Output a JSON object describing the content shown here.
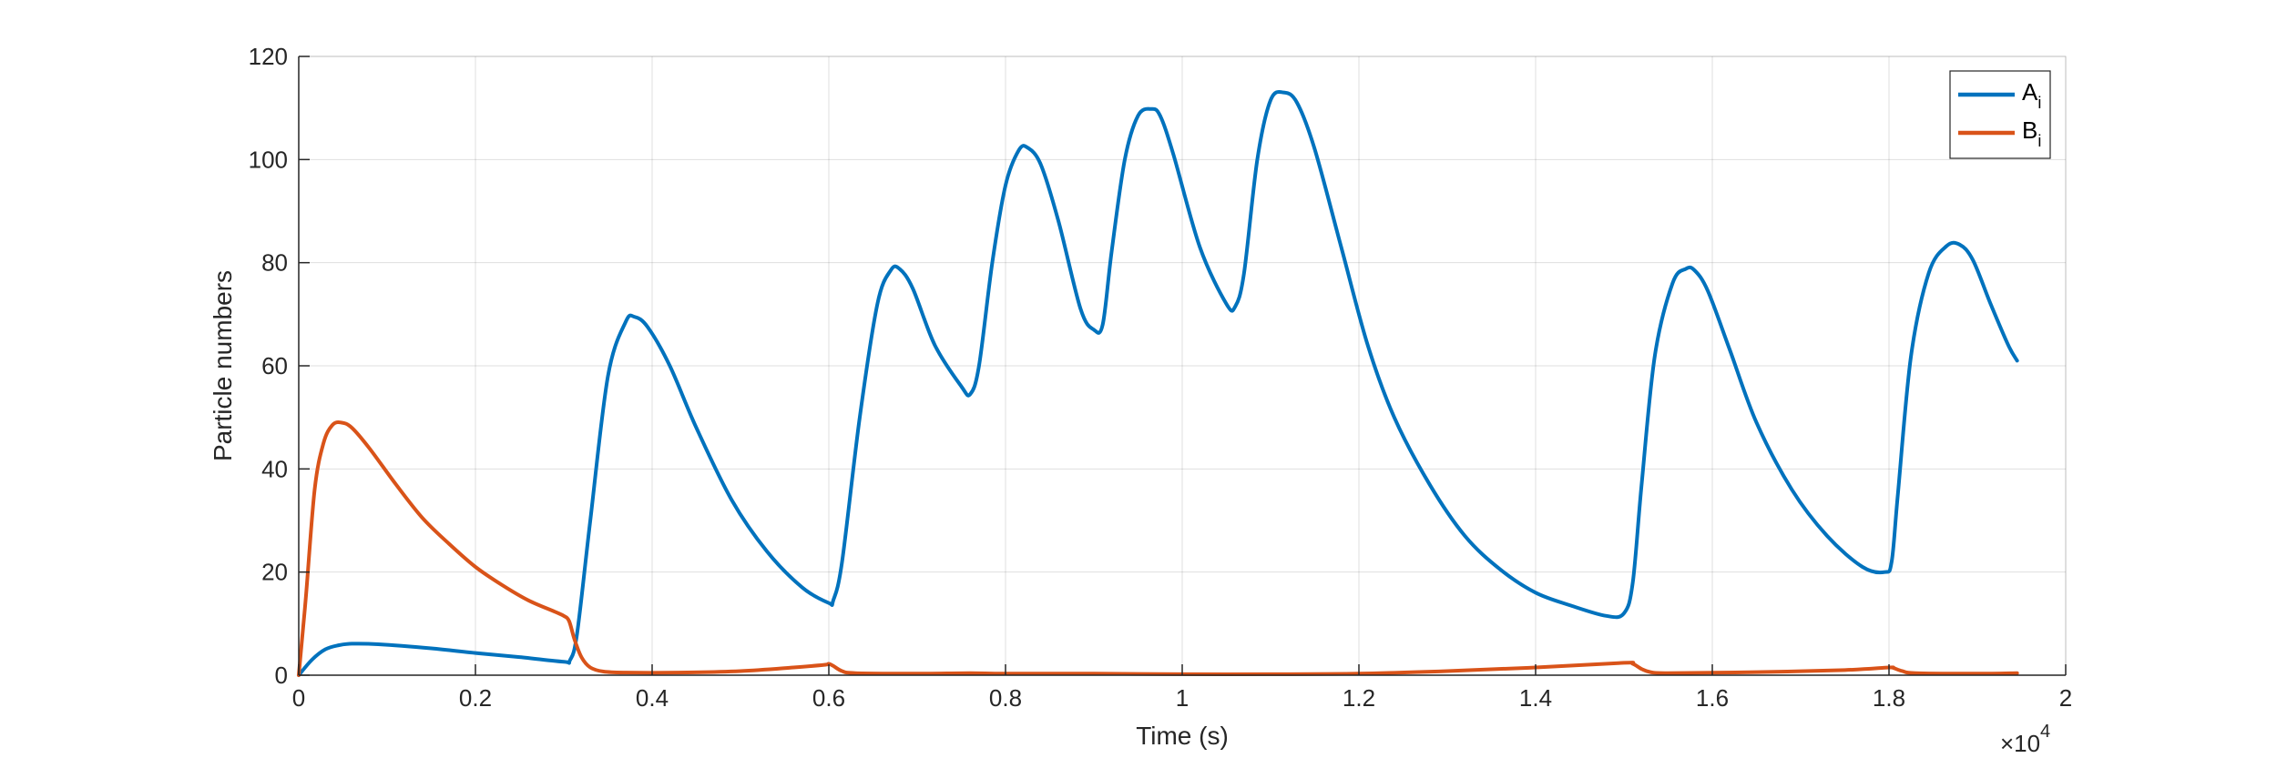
{
  "chart_data": {
    "type": "line",
    "xlabel": "Time (s)",
    "ylabel": "Particle numbers",
    "x_multiplier_label": "×10",
    "x_multiplier_exponent": "4",
    "xlim": [
      0,
      20000
    ],
    "ylim": [
      0,
      120
    ],
    "xticks": [
      0,
      2000,
      4000,
      6000,
      8000,
      10000,
      12000,
      14000,
      16000,
      18000,
      20000
    ],
    "xtick_labels": [
      "0",
      "0.2",
      "0.4",
      "0.6",
      "0.8",
      "1",
      "1.2",
      "1.4",
      "1.6",
      "1.8",
      "2"
    ],
    "yticks": [
      0,
      20,
      40,
      60,
      80,
      100,
      120
    ],
    "grid": true,
    "legend_position": "top-right",
    "series": [
      {
        "name": "A",
        "name_subscript": "i",
        "color": "#0072BD",
        "x": [
          0,
          150,
          300,
          450,
          600,
          900,
          1500,
          2000,
          2500,
          3000,
          3070,
          3150,
          3300,
          3500,
          3700,
          3800,
          3950,
          4200,
          4500,
          4900,
          5300,
          5700,
          6000,
          6050,
          6150,
          6350,
          6550,
          6700,
          6800,
          6950,
          7200,
          7500,
          7600,
          7700,
          7850,
          8000,
          8150,
          8250,
          8400,
          8600,
          8850,
          9000,
          9100,
          9200,
          9350,
          9500,
          9650,
          9750,
          9900,
          10200,
          10500,
          10600,
          10700,
          10850,
          11000,
          11150,
          11300,
          11500,
          11800,
          12100,
          12400,
          12800,
          13200,
          13600,
          14000,
          14400,
          14800,
          15000,
          15100,
          15200,
          15350,
          15550,
          15700,
          15800,
          15950,
          16200,
          16500,
          16900,
          17300,
          17700,
          17950,
          18030,
          18100,
          18250,
          18450,
          18650,
          18800,
          18950,
          19150,
          19350,
          19450
        ],
        "y": [
          0,
          3,
          5,
          5.8,
          6.1,
          6,
          5.2,
          4.3,
          3.5,
          2.6,
          2.9,
          8,
          30,
          58,
          68.5,
          69.5,
          67.5,
          60,
          48,
          34,
          24,
          17,
          14,
          14.5,
          22,
          50,
          72,
          78.5,
          78.8,
          75,
          64,
          56,
          54.5,
          60,
          80,
          95,
          101.8,
          102.3,
          99,
          88,
          71,
          67,
          68,
          82,
          100,
          108.5,
          109.8,
          108.5,
          101,
          83,
          72,
          71.5,
          78,
          100,
          111.5,
          113,
          111,
          102,
          83,
          64,
          50,
          37,
          27,
          20.5,
          16,
          13.5,
          11.5,
          12,
          18,
          37,
          62,
          76,
          78.8,
          78.5,
          74.5,
          63,
          49,
          36,
          27,
          21,
          20,
          22,
          35,
          62,
          78,
          83.2,
          83.5,
          80.5,
          72,
          64,
          61
        ]
      },
      {
        "name": "B",
        "name_subscript": "i",
        "color": "#D95319",
        "x": [
          0,
          80,
          180,
          280,
          380,
          480,
          600,
          800,
          1100,
          1400,
          1700,
          2000,
          2300,
          2600,
          2900,
          3000,
          3060,
          3120,
          3200,
          3300,
          3450,
          3700,
          4300,
          5000,
          5600,
          5950,
          6000,
          6050,
          6150,
          6300,
          7000,
          7600,
          8000,
          9000,
          10000,
          11000,
          12000,
          13000,
          14000,
          15000,
          15100,
          15200,
          15300,
          15500,
          16500,
          17500,
          18000,
          18050,
          18150,
          18300,
          19000,
          19450
        ],
        "y": [
          0,
          15,
          36,
          45,
          48.5,
          49,
          48,
          44,
          37,
          30.5,
          25.5,
          21,
          17.5,
          14.5,
          12.3,
          11.5,
          10.5,
          7,
          3.5,
          1.5,
          0.7,
          0.5,
          0.5,
          0.8,
          1.5,
          2,
          2.2,
          1.8,
          0.8,
          0.4,
          0.3,
          0.4,
          0.3,
          0.3,
          0.2,
          0.2,
          0.3,
          0.8,
          1.5,
          2.4,
          2.2,
          1.2,
          0.6,
          0.4,
          0.6,
          1,
          1.5,
          1.4,
          0.8,
          0.4,
          0.3,
          0.4
        ]
      }
    ]
  }
}
